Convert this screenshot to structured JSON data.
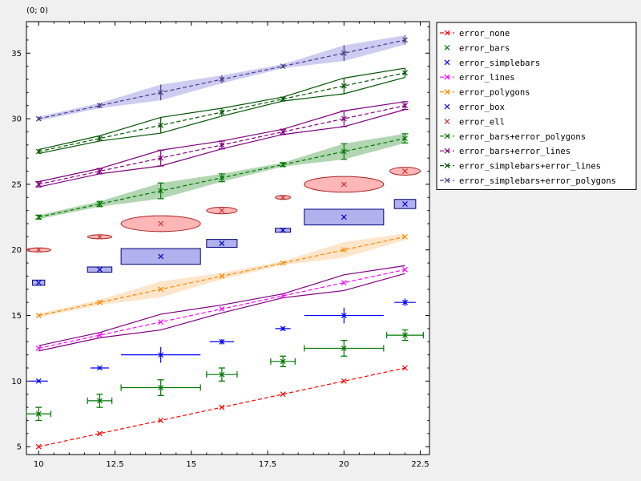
{
  "coord_readout": "(0; 0)",
  "chart_data": {
    "type": "line",
    "title": "",
    "xlabel": "",
    "ylabel": "",
    "xlim": [
      9.6,
      22.8
    ],
    "ylim": [
      4.4,
      37.4
    ],
    "x_ticks": [
      10,
      12.5,
      15,
      17.5,
      20,
      22.5
    ],
    "x_tick_labels": [
      "10",
      "12.5",
      "15",
      "17.5",
      "20",
      "22.5"
    ],
    "y_ticks": [
      5,
      10,
      15,
      20,
      25,
      30,
      35
    ],
    "y_tick_labels": [
      "5",
      "10",
      "15",
      "20",
      "25",
      "30",
      "35"
    ],
    "x": [
      10,
      12,
      14,
      16,
      18,
      20,
      22
    ],
    "legend_position": "outside-right-top",
    "series": [
      {
        "name": "error_none",
        "color": "#ff0000",
        "style": "none",
        "line": true,
        "y": [
          5,
          6,
          7,
          8,
          9,
          10,
          11
        ]
      },
      {
        "name": "error_bars",
        "color": "#007700",
        "style": "bars",
        "line": false,
        "y": [
          7.5,
          8.5,
          9.5,
          10.5,
          11.5,
          12.5,
          13.5
        ],
        "yerr": [
          0.5,
          0.5,
          0.6,
          0.5,
          0.4,
          0.6,
          0.4
        ],
        "xerr": [
          0.4,
          0.4,
          1.3,
          0.5,
          0.4,
          1.3,
          0.6
        ]
      },
      {
        "name": "error_simplebars",
        "color": "#0000ff",
        "style": "simplebars",
        "line": false,
        "y": [
          10,
          11,
          12,
          13,
          14,
          15,
          16
        ],
        "yerr": [
          0.1,
          0.1,
          0.6,
          0.2,
          0.15,
          0.6,
          0.3
        ],
        "xerr": [
          0.3,
          0.3,
          1.3,
          0.4,
          0.25,
          1.3,
          0.35
        ]
      },
      {
        "name": "error_lines",
        "color": "#ff00ff",
        "style": "lines",
        "line": true,
        "y": [
          12.5,
          13.5,
          14.5,
          15.5,
          16.5,
          17.5,
          18.5
        ],
        "yerr": [
          0.2,
          0.2,
          0.6,
          0.3,
          0.15,
          0.6,
          0.3
        ]
      },
      {
        "name": "error_polygons",
        "color": "#ff8800",
        "style": "polygons",
        "line": true,
        "y": [
          15,
          16,
          17,
          18,
          19,
          20,
          21
        ],
        "yerr": [
          0.15,
          0.2,
          0.6,
          0.25,
          0.15,
          0.6,
          0.25
        ]
      },
      {
        "name": "error_box",
        "color": "#000080",
        "style": "box",
        "line": false,
        "y": [
          17.5,
          18.5,
          19.5,
          20.5,
          21.5,
          22.5,
          23.5
        ],
        "yerr": [
          0.2,
          0.2,
          0.6,
          0.3,
          0.15,
          0.6,
          0.35
        ],
        "xerr": [
          0.2,
          0.4,
          1.3,
          0.5,
          0.25,
          1.3,
          0.35
        ]
      },
      {
        "name": "error_ell",
        "color": "#cc3333",
        "style": "ell",
        "line": false,
        "y": [
          20,
          21,
          22,
          23,
          24,
          25,
          26
        ],
        "yerr": [
          0.15,
          0.15,
          0.6,
          0.25,
          0.1,
          0.6,
          0.3
        ],
        "xerr": [
          0.4,
          0.4,
          1.3,
          0.5,
          0.25,
          1.3,
          0.5
        ]
      },
      {
        "name": "error_bars+error_polygons",
        "color": "#007700",
        "style": "bars+polygons",
        "line": true,
        "y": [
          22.5,
          23.5,
          24.5,
          25.5,
          26.5,
          27.5,
          28.5
        ],
        "yerr": [
          0.15,
          0.2,
          0.6,
          0.3,
          0.15,
          0.6,
          0.35
        ]
      },
      {
        "name": "error_bars+error_lines",
        "color": "#800080",
        "style": "bars+lines",
        "line": true,
        "y": [
          25,
          26,
          27,
          28,
          29,
          30,
          31
        ],
        "yerr": [
          0.2,
          0.2,
          0.6,
          0.3,
          0.2,
          0.6,
          0.3
        ]
      },
      {
        "name": "error_simplebars+error_lines",
        "color": "#005500",
        "style": "simplebars+lines",
        "line": true,
        "y": [
          27.5,
          28.5,
          29.5,
          30.5,
          31.5,
          32.5,
          33.5
        ],
        "yerr": [
          0.15,
          0.2,
          0.6,
          0.3,
          0.15,
          0.6,
          0.35
        ]
      },
      {
        "name": "error_simplebars+error_polygons",
        "color": "#483d8b",
        "style": "simplebars+polygons",
        "line": true,
        "y": [
          30,
          31,
          32,
          33,
          34,
          35,
          36
        ],
        "yerr": [
          0.15,
          0.2,
          0.6,
          0.3,
          0.15,
          0.6,
          0.35
        ]
      }
    ]
  }
}
